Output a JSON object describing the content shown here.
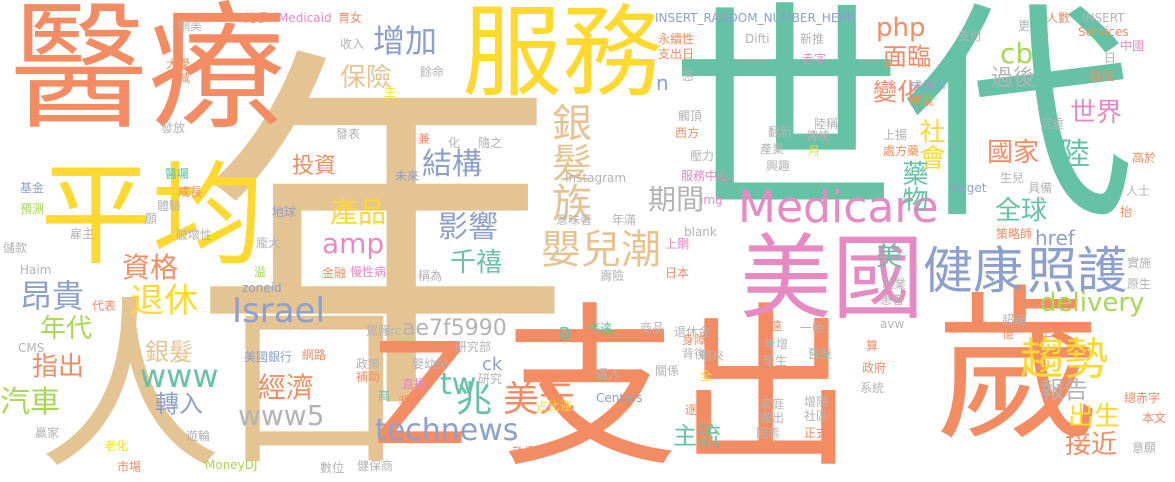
{
  "words": [
    {
      "text": "年",
      "color": "tan"
    },
    {
      "text": "世代",
      "color": "teal"
    },
    {
      "text": "醫療",
      "color": "orange"
    },
    {
      "text": "服務",
      "color": "yellow"
    },
    {
      "text": "平均",
      "color": "yellow"
    },
    {
      "text": "人口",
      "color": "tan"
    },
    {
      "text": "支出",
      "color": "orange"
    },
    {
      "text": "歲",
      "color": "orange"
    },
    {
      "text": "Z",
      "color": "orange"
    },
    {
      "text": "美國",
      "color": "pink"
    },
    {
      "text": "Medicare",
      "color": "pink"
    },
    {
      "text": "健康",
      "color": "purple"
    },
    {
      "text": "照護",
      "color": "purple"
    },
    {
      "text": "嬰兒潮",
      "color": "tan"
    },
    {
      "text": "銀髮族",
      "color": "tan"
    },
    {
      "text": "趨勢",
      "color": "yellow"
    },
    {
      "text": "technews",
      "color": "purple"
    },
    {
      "text": "美元",
      "color": "orange"
    },
    {
      "text": "兆",
      "color": "teal"
    },
    {
      "text": "www5",
      "color": "gray"
    },
    {
      "text": "經濟",
      "color": "orange"
    },
    {
      "text": "退休",
      "color": "yellow"
    },
    {
      "text": "Israel",
      "color": "purple"
    },
    {
      "text": "www",
      "color": "teal"
    },
    {
      "text": "昂貴",
      "color": "purple"
    },
    {
      "text": "資格",
      "color": "orange"
    },
    {
      "text": "amp",
      "color": "pink"
    },
    {
      "text": "產品",
      "color": "yellow"
    },
    {
      "text": "影響",
      "color": "purple"
    },
    {
      "text": "千禧",
      "color": "teal"
    },
    {
      "text": "結構",
      "color": "purple"
    },
    {
      "text": "期間",
      "color": "gray"
    },
    {
      "text": "增加",
      "color": "purple"
    },
    {
      "text": "保險",
      "color": "tan"
    },
    {
      "text": "續續",
      "color": "tan"
    },
    {
      "text": "投資",
      "color": "orange"
    },
    {
      "text": "年代",
      "color": "lime"
    },
    {
      "text": "指出",
      "color": "orange"
    },
    {
      "text": "汽車",
      "color": "lime"
    },
    {
      "text": "銀髮",
      "color": "tan"
    },
    {
      "text": "轉入",
      "color": "purple"
    },
    {
      "text": "tw",
      "color": "teal"
    },
    {
      "text": "ck",
      "color": "purple"
    },
    {
      "text": "主流",
      "color": "teal"
    },
    {
      "text": "a",
      "color": "teal"
    },
    {
      "text": "ae7f5990",
      "color": "gray"
    },
    {
      "text": "php",
      "color": "orange"
    },
    {
      "text": "面臨",
      "color": "orange"
    },
    {
      "text": "cb",
      "color": "lime"
    },
    {
      "text": "過後",
      "color": "gray"
    },
    {
      "text": "變化",
      "color": "orange"
    },
    {
      "text": "世界",
      "color": "pink"
    },
    {
      "text": "社會",
      "color": "yellow"
    },
    {
      "text": "國家",
      "color": "orange"
    },
    {
      "text": "陸",
      "color": "teal"
    },
    {
      "text": "藥物",
      "color": "teal"
    },
    {
      "text": "全球",
      "color": "teal"
    },
    {
      "text": "href",
      "color": "purple"
    },
    {
      "text": "美",
      "color": "teal"
    },
    {
      "text": "delivery",
      "color": "lime"
    },
    {
      "text": "報告",
      "color": "gray"
    },
    {
      "text": "出生",
      "color": "yellow"
    },
    {
      "text": "接近",
      "color": "orange"
    },
    {
      "text": "n",
      "color": "purple"
    },
    {
      "text": "INSERT_RANDOM_NUMBER_HERE",
      "color": "purple"
    },
    {
      "text": "INSERT",
      "color": "gray"
    },
    {
      "text": "永續性",
      "color": "orange"
    },
    {
      "text": "支出日",
      "color": "orange"
    },
    {
      "text": "Difti",
      "color": "gray"
    },
    {
      "text": "新推",
      "color": "gray"
    },
    {
      "text": "更",
      "color": "gray"
    },
    {
      "text": "支付",
      "color": "gray"
    },
    {
      "text": "人數",
      "color": "orange"
    },
    {
      "text": "Services",
      "color": "orange"
    },
    {
      "text": "中國",
      "color": "pink"
    },
    {
      "text": "醫院",
      "color": "orange"
    },
    {
      "text": "成長率",
      "color": "purple"
    },
    {
      "text": "產業",
      "color": "orange"
    },
    {
      "text": "赤字",
      "color": "pink"
    },
    {
      "text": "感",
      "color": "gray"
    },
    {
      "text": "觸頂",
      "color": "gray"
    },
    {
      "text": "西方",
      "color": "orange"
    },
    {
      "text": "翻新",
      "color": "gray"
    },
    {
      "text": "傳統",
      "color": "gray"
    },
    {
      "text": "產業",
      "color": "gray"
    },
    {
      "text": "壓力",
      "color": "gray"
    },
    {
      "text": "服務中心",
      "color": "pink"
    },
    {
      "text": "興趣",
      "color": "gray"
    },
    {
      "text": "Instagram",
      "color": "gray"
    },
    {
      "text": "未來",
      "color": "purple"
    },
    {
      "text": "隨之",
      "color": "gray"
    },
    {
      "text": "兼",
      "color": "orange"
    },
    {
      "text": "化",
      "color": "gray"
    },
    {
      "text": "意味著",
      "color": "gray"
    },
    {
      "text": "年滿",
      "color": "gray"
    },
    {
      "text": "_blank",
      "color": "gray"
    },
    {
      "text": "上網",
      "color": "pink"
    },
    {
      "text": "img",
      "color": "pink"
    },
    {
      "text": "日本",
      "color": "orange"
    },
    {
      "text": "壽險",
      "color": "gray"
    },
    {
      "text": "網路",
      "color": "orange"
    },
    {
      "text": "美國銀行",
      "color": "purple"
    },
    {
      "text": "研究部",
      "color": "gray"
    },
    {
      "text": "src",
      "color": "gray"
    },
    {
      "text": "政策",
      "color": "gray"
    },
    {
      "text": "補助",
      "color": "orange"
    },
    {
      "text": "嬰幼兒",
      "color": "gray"
    },
    {
      "text": "直播",
      "color": "pink"
    },
    {
      "text": "研究",
      "color": "gray"
    },
    {
      "text": "占比達",
      "color": "yellow"
    },
    {
      "text": "敦促",
      "color": "orange"
    },
    {
      "text": "健保商",
      "color": "gray"
    },
    {
      "text": "數位",
      "color": "gray"
    },
    {
      "text": "MoneyDJ",
      "color": "lime"
    },
    {
      "text": "遊輪",
      "color": "gray"
    },
    {
      "text": "市場",
      "color": "orange"
    },
    {
      "text": "老化",
      "color": "yellow"
    },
    {
      "text": "贏家",
      "color": "gray"
    },
    {
      "text": "CMS",
      "color": "gray"
    },
    {
      "text": "Haim",
      "color": "gray"
    },
    {
      "text": "基金",
      "color": "purple"
    },
    {
      "text": "預測",
      "color": "lime"
    },
    {
      "text": "儲款",
      "color": "gray"
    },
    {
      "text": "雇主",
      "color": "gray"
    },
    {
      "text": "醫囑",
      "color": "teal"
    },
    {
      "text": "成長",
      "color": "orange"
    },
    {
      "text": "體驗",
      "color": "gray"
    },
    {
      "text": "願",
      "color": "gray"
    },
    {
      "text": "破壞性",
      "color": "gray"
    },
    {
      "text": "地球",
      "color": "purple"
    },
    {
      "text": "龐大",
      "color": "gray"
    },
    {
      "text": "慢性病",
      "color": "pink"
    },
    {
      "text": "金融",
      "color": "orange"
    },
    {
      "text": "溢",
      "color": "lime"
    },
    {
      "text": "zoneid",
      "color": "purple"
    },
    {
      "text": "代表",
      "color": "orange"
    },
    {
      "text": "駕照",
      "color": "gray"
    },
    {
      "text": "高",
      "color": "teal"
    },
    {
      "text": "非",
      "color": "orange"
    },
    {
      "text": "稱為",
      "color": "gray"
    },
    {
      "text": "高達",
      "color": "teal"
    },
    {
      "text": "商品",
      "color": "gray"
    },
    {
      "text": "退休金",
      "color": "gray"
    },
    {
      "text": "關係",
      "color": "gray"
    },
    {
      "text": "邁入",
      "color": "gray"
    },
    {
      "text": "全",
      "color": "yellow"
    },
    {
      "text": "Centers",
      "color": "purple"
    },
    {
      "text": "逐年",
      "color": "orange"
    },
    {
      "text": "一胎",
      "color": "gray"
    },
    {
      "text": "遠",
      "color": "orange"
    },
    {
      "text": "年增",
      "color": "gray"
    },
    {
      "text": "學生",
      "color": "gray"
    },
    {
      "text": "家庭",
      "color": "gray"
    },
    {
      "text": "搬出",
      "color": "gray"
    },
    {
      "text": "因素",
      "color": "gray"
    },
    {
      "text": "增隨",
      "color": "gray"
    },
    {
      "text": "社區",
      "color": "gray"
    },
    {
      "text": "正式",
      "color": "orange"
    },
    {
      "text": "舊屋",
      "color": "gray"
    },
    {
      "text": "系統",
      "color": "gray"
    },
    {
      "text": "政府",
      "color": "orange"
    },
    {
      "text": "就業",
      "color": "gray"
    },
    {
      "text": "患者",
      "color": "gray"
    },
    {
      "text": "avw",
      "color": "gray"
    },
    {
      "text": "超過",
      "color": "gray"
    },
    {
      "text": "億",
      "color": "orange"
    },
    {
      "text": "主管",
      "color": "orange"
    },
    {
      "text": "總赤字",
      "color": "orange"
    },
    {
      "text": "本文",
      "color": "orange"
    },
    {
      "text": "意願",
      "color": "gray"
    },
    {
      "text": "原生",
      "color": "gray"
    },
    {
      "text": "實施",
      "color": "gray"
    },
    {
      "text": "抬",
      "color": "orange"
    },
    {
      "text": "人士",
      "color": "gray"
    },
    {
      "text": "高於",
      "color": "orange"
    },
    {
      "text": "沉重",
      "color": "gray"
    },
    {
      "text": "處方藥",
      "color": "orange"
    },
    {
      "text": "上揚",
      "color": "gray"
    },
    {
      "text": "生兒",
      "color": "gray"
    },
    {
      "text": "具備",
      "color": "gray"
    },
    {
      "text": "target",
      "color": "purple"
    },
    {
      "text": "策略師",
      "color": "orange"
    },
    {
      "text": "陸稱",
      "color": "gray"
    },
    {
      "text": "月",
      "color": "yellow"
    },
    {
      "text": "背後",
      "color": "gray"
    },
    {
      "text": "身障",
      "color": "orange"
    },
    {
      "text": "帶來",
      "color": "gray"
    },
    {
      "text": "算",
      "color": "orange"
    },
    {
      "text": "兇手",
      "color": "orange"
    },
    {
      "text": "網美",
      "color": "gray"
    },
    {
      "text": "Medicaid",
      "color": "pink"
    },
    {
      "text": "育女",
      "color": "orange"
    },
    {
      "text": "收入",
      "color": "gray"
    },
    {
      "text": "大學",
      "color": "orange"
    },
    {
      "text": "減",
      "color": "orange"
    },
    {
      "text": "餘命",
      "color": "gray"
    },
    {
      "text": "生",
      "color": "yellow"
    },
    {
      "text": "發放",
      "color": "gray"
    },
    {
      "text": "發表",
      "color": "gray"
    },
    {
      "text": "日",
      "color": "gray"
    }
  ]
}
